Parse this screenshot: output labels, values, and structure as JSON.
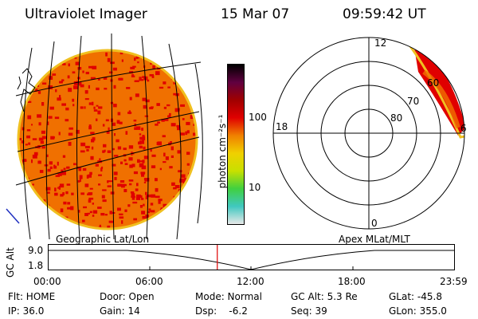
{
  "header": {
    "title": "Ultraviolet Imager",
    "date": "15 Mar 07",
    "time": "09:59:42 UT"
  },
  "colorbar": {
    "unit_label": "photon cm⁻²s⁻¹",
    "ticks": [
      "100",
      "10"
    ]
  },
  "map_labels": {
    "left": "Geographic Lat/Lon",
    "right": "Apex MLat/MLT"
  },
  "polar": {
    "mlt_labels": [
      "12",
      "18",
      "6",
      "0"
    ],
    "mlat_labels": [
      "60",
      "70",
      "80"
    ]
  },
  "altitude_plot": {
    "ylabel": "GC Alt",
    "yticks": [
      "9.0",
      "1.8"
    ],
    "xticks": [
      "00:00",
      "06:00",
      "12:00",
      "18:00",
      "23:59"
    ],
    "current_time_fraction": 0.416
  },
  "status": {
    "flt": "Flt: HOME",
    "ip": "IP: 36.0",
    "door": "Door: Open",
    "gain": "Gain: 14",
    "mode": "Mode: Normal",
    "dsp": "Dsp:    -6.2",
    "gc_alt": "GC Alt: 5.3 Re",
    "seq": "Seq: 39",
    "glat": "GLat: -45.8",
    "glon": "GLon: 355.0"
  },
  "colors": {
    "colorbar": [
      "#e8e8e8",
      "#40c8c0",
      "#40d040",
      "#c8e000",
      "#f0d000",
      "#f08000",
      "#e00000",
      "#a00000",
      "#600040",
      "#000000"
    ],
    "disk_base": "#f07000",
    "disk_spots": "#e00000",
    "disk_edge": "#f0c020"
  }
}
